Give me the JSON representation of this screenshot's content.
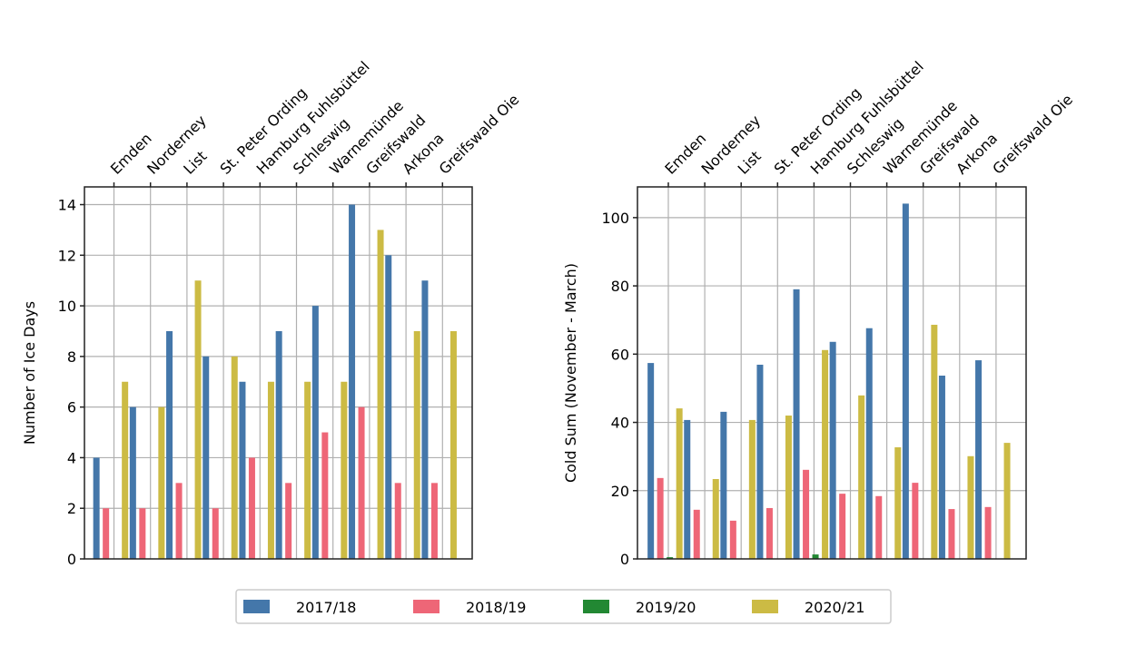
{
  "chart_data": [
    {
      "type": "bar",
      "title": "",
      "xlabel": "",
      "ylabel": "Number of Ice Days",
      "ylim": [
        0,
        14.7
      ],
      "yticks": [
        0,
        2,
        4,
        6,
        8,
        10,
        12,
        14
      ],
      "grid": true,
      "xaxis_position": "top",
      "categories": [
        "Emden",
        "Norderney",
        "List",
        "St. Peter Ording",
        "Hamburg Fuhlsbüttel",
        "Schleswig",
        "Warnemünde",
        "Greifswald",
        "Arkona",
        "Greifswald Oie"
      ],
      "series": [
        {
          "name": "2017/18",
          "color": "#4477aa",
          "values": [
            4,
            6,
            9,
            8,
            7,
            9,
            10,
            14,
            12,
            11
          ]
        },
        {
          "name": "2018/19",
          "color": "#ee6677",
          "values": [
            2,
            2,
            3,
            2,
            4,
            3,
            5,
            6,
            3,
            3
          ]
        },
        {
          "name": "2019/20",
          "color": "#228833",
          "values": [
            0,
            0,
            0,
            0,
            0,
            0,
            0,
            0,
            0,
            0
          ]
        },
        {
          "name": "2020/21",
          "color": "#ccbb44",
          "values": [
            7,
            6,
            11,
            8,
            7,
            7,
            7,
            13,
            9,
            9
          ]
        }
      ]
    },
    {
      "type": "bar",
      "title": "",
      "xlabel": "",
      "ylabel": "Cold Sum (November - March)",
      "ylim": [
        0,
        109
      ],
      "yticks": [
        0,
        20,
        40,
        60,
        80,
        100
      ],
      "grid": true,
      "xaxis_position": "top",
      "categories": [
        "Emden",
        "Norderney",
        "List",
        "St. Peter Ording",
        "Hamburg Fuhlsbüttel",
        "Schleswig",
        "Warnemünde",
        "Greifswald",
        "Arkona",
        "Greifswald Oie"
      ],
      "series": [
        {
          "name": "2017/18",
          "color": "#4477aa",
          "values": [
            57.4,
            40.7,
            43.1,
            56.9,
            79.0,
            63.6,
            67.6,
            104.1,
            53.7,
            58.2
          ]
        },
        {
          "name": "2018/19",
          "color": "#ee6677",
          "values": [
            23.7,
            14.4,
            11.2,
            14.9,
            26.1,
            19.1,
            18.4,
            22.3,
            14.6,
            15.2
          ]
        },
        {
          "name": "2019/20",
          "color": "#228833",
          "values": [
            0.5,
            0,
            0,
            0,
            1.3,
            0,
            0,
            0,
            0,
            0
          ]
        },
        {
          "name": "2020/21",
          "color": "#ccbb44",
          "values": [
            44.1,
            23.4,
            40.7,
            42.0,
            61.2,
            47.9,
            32.7,
            68.6,
            30.1,
            34.0
          ]
        }
      ]
    }
  ],
  "legend": {
    "placement": "bottom-center",
    "entries": [
      {
        "label": "2017/18",
        "color": "#4477aa"
      },
      {
        "label": "2018/19",
        "color": "#ee6677"
      },
      {
        "label": "2019/20",
        "color": "#228833"
      },
      {
        "label": "2020/21",
        "color": "#ccbb44"
      }
    ]
  }
}
